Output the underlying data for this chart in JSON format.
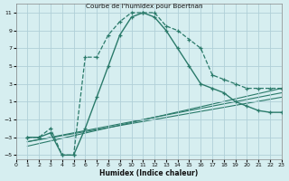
{
  "title": "Courbe de l'humidex pour Boertnan",
  "xlabel": "Humidex (Indice chaleur)",
  "bg_color": "#d6eef0",
  "grid_color": "#b0d0d8",
  "line_color": "#2a7a6a",
  "xlim": [
    0,
    23
  ],
  "ylim": [
    -5.5,
    12
  ],
  "xticks": [
    0,
    1,
    2,
    3,
    4,
    5,
    6,
    7,
    8,
    9,
    10,
    11,
    12,
    13,
    14,
    15,
    16,
    17,
    18,
    19,
    20,
    21,
    22,
    23
  ],
  "yticks": [
    -5,
    -3,
    -1,
    1,
    3,
    5,
    7,
    9,
    11
  ],
  "curve1_x": [
    1,
    2,
    3,
    4,
    5,
    6,
    7,
    8,
    9,
    10,
    11,
    12,
    13,
    14,
    15,
    16,
    17,
    18,
    19,
    20,
    21,
    22,
    23
  ],
  "curve1_y": [
    -3,
    -3,
    -2,
    -5,
    -5,
    6,
    6,
    8.5,
    10,
    11,
    11,
    11,
    9.5,
    9,
    8,
    7,
    4,
    3.5,
    3,
    2.5,
    2.5,
    2.5,
    2.5
  ],
  "curve2_x": [
    1,
    2,
    3,
    4,
    5,
    6,
    7,
    8,
    9,
    10,
    11,
    12,
    13,
    14,
    15,
    16,
    17,
    18,
    19,
    20,
    21,
    22,
    23
  ],
  "curve2_y": [
    -3,
    -3,
    -2.5,
    -5,
    -5,
    -2,
    1.5,
    5,
    8.5,
    10.5,
    11,
    10.5,
    9,
    7,
    5,
    3,
    2.5,
    2,
    1,
    0.5,
    0,
    -0.2,
    -0.2
  ],
  "line1_x": [
    1,
    23
  ],
  "line1_y": [
    -3.5,
    2.0
  ],
  "line2_x": [
    1,
    23
  ],
  "line2_y": [
    -3.5,
    1.5
  ],
  "line3_x": [
    1,
    23
  ],
  "line3_y": [
    -4.0,
    2.5
  ]
}
